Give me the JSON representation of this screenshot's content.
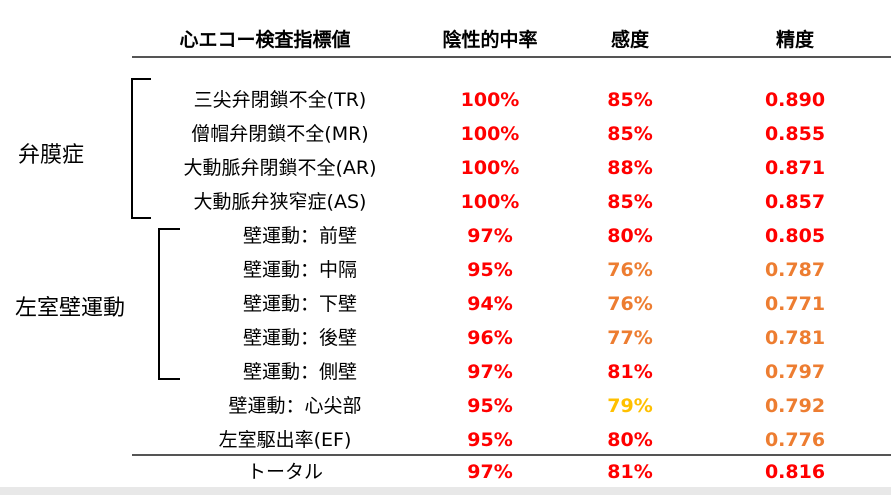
{
  "headers": {
    "indicator": "心エコー検査指標値",
    "npv": "陰性的中率",
    "sensitivity": "感度",
    "accuracy": "精度"
  },
  "groups": {
    "valve": "弁膜症",
    "wall": "左室壁運動"
  },
  "colors": {
    "red": "#ff0000",
    "orange": "#ed7d31",
    "yellow": "#ffc000",
    "black": "#000000"
  },
  "rows": [
    {
      "label": "三尖弁閉鎖不全(TR)",
      "npv": "100%",
      "sensitivity": "85%",
      "accuracy": "0.890",
      "c": [
        "red",
        "red",
        "red"
      ]
    },
    {
      "label": "僧帽弁閉鎖不全(MR)",
      "npv": "100%",
      "sensitivity": "85%",
      "accuracy": "0.855",
      "c": [
        "red",
        "red",
        "red"
      ]
    },
    {
      "label": "大動脈弁閉鎖不全(AR)",
      "npv": "100%",
      "sensitivity": "88%",
      "accuracy": "0.871",
      "c": [
        "red",
        "red",
        "red"
      ]
    },
    {
      "label": "大動脈弁狭窄症(AS)",
      "npv": "100%",
      "sensitivity": "85%",
      "accuracy": "0.857",
      "c": [
        "red",
        "red",
        "red"
      ]
    },
    {
      "label": "壁運動：前壁",
      "npv": "97%",
      "sensitivity": "80%",
      "accuracy": "0.805",
      "c": [
        "red",
        "red",
        "red"
      ]
    },
    {
      "label": "壁運動：中隔",
      "npv": "95%",
      "sensitivity": "76%",
      "accuracy": "0.787",
      "c": [
        "red",
        "orange",
        "orange"
      ]
    },
    {
      "label": "壁運動：下壁",
      "npv": "94%",
      "sensitivity": "76%",
      "accuracy": "0.771",
      "c": [
        "red",
        "orange",
        "orange"
      ]
    },
    {
      "label": "壁運動：後壁",
      "npv": "96%",
      "sensitivity": "77%",
      "accuracy": "0.781",
      "c": [
        "red",
        "orange",
        "orange"
      ]
    },
    {
      "label": "壁運動：側壁",
      "npv": "97%",
      "sensitivity": "81%",
      "accuracy": "0.797",
      "c": [
        "red",
        "red",
        "orange"
      ]
    },
    {
      "label": "壁運動：心尖部",
      "npv": "95%",
      "sensitivity": "79%",
      "accuracy": "0.792",
      "c": [
        "red",
        "yellow",
        "orange"
      ]
    },
    {
      "label": "左室駆出率(EF)",
      "npv": "95%",
      "sensitivity": "80%",
      "accuracy": "0.776",
      "c": [
        "red",
        "red",
        "orange"
      ]
    }
  ],
  "total": {
    "label": "トータル",
    "npv": "97%",
    "sensitivity": "81%",
    "accuracy": "0.816",
    "c": [
      "red",
      "red",
      "red"
    ]
  }
}
